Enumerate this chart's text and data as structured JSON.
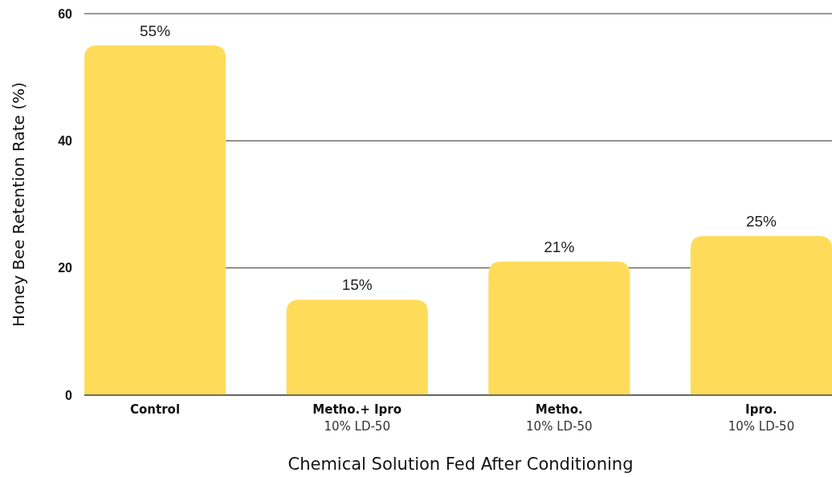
{
  "chart_data": {
    "type": "bar",
    "xlabel": "Chemical Solution Fed After Conditioning",
    "ylabel": "Honey Bee Retention Rate (%)",
    "categories": [
      "Control",
      "Metho.+ Ipro\n10% LD-50",
      "Metho.\n10% LD-50",
      "Ipro.\n10% LD-50"
    ],
    "values": [
      55,
      15,
      21,
      25
    ],
    "value_labels": [
      "55%",
      "15%",
      "21%",
      "25%"
    ],
    "color": "#fedc5a",
    "ylim": [
      0,
      60
    ],
    "yticks": [
      0,
      20,
      40,
      60
    ],
    "grid": "y"
  }
}
